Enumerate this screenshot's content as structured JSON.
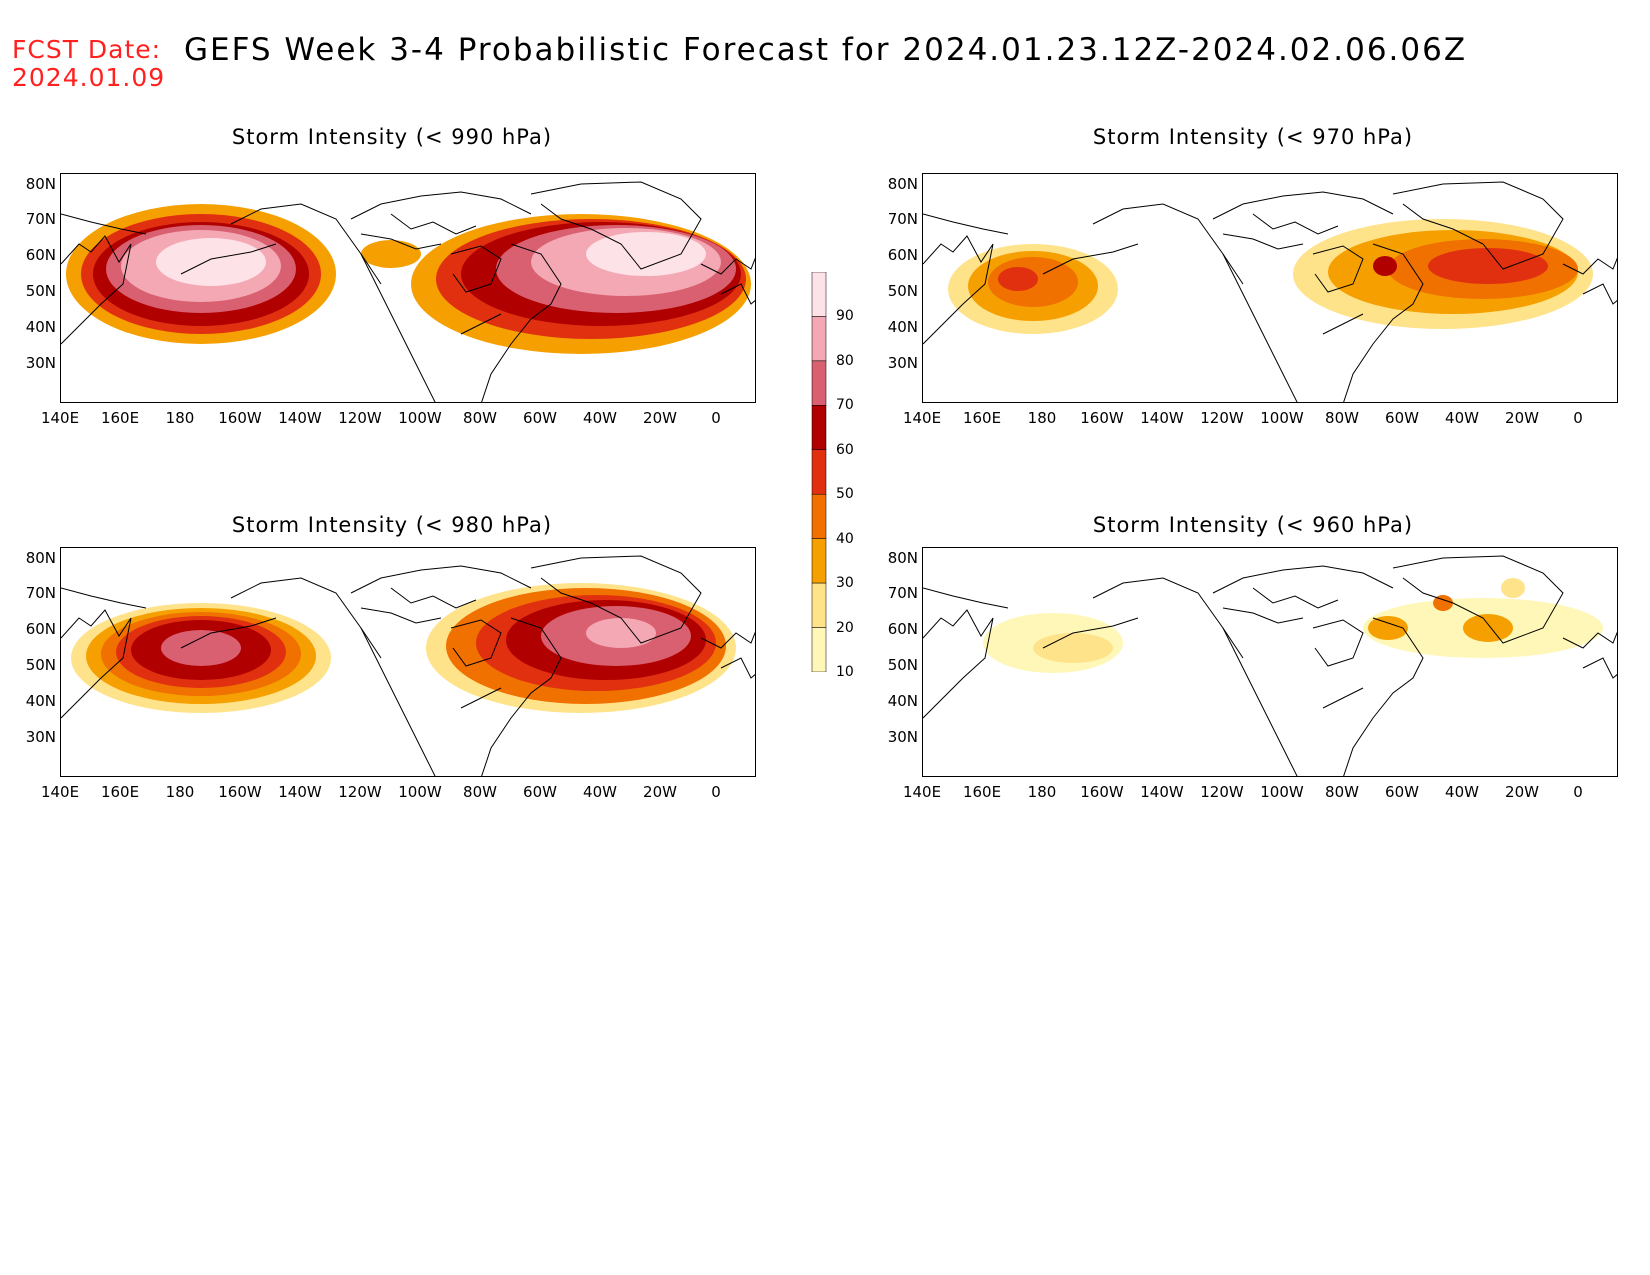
{
  "header": {
    "fcst_label": "FCST Date:",
    "fcst_date": "2024.01.09",
    "title": "GEFS Week 3-4 Probabilistic Forecast for 2024.01.23.12Z-2024.02.06.06Z"
  },
  "panels": [
    {
      "title": "Storm Intensity (< 990 hPa)"
    },
    {
      "title": "Storm Intensity (< 970 hPa)"
    },
    {
      "title": "Storm Intensity (< 980 hPa)"
    },
    {
      "title": "Storm Intensity (< 960 hPa)"
    }
  ],
  "axes": {
    "lat_labels": [
      "80N",
      "70N",
      "60N",
      "50N",
      "40N",
      "30N"
    ],
    "lon_labels": [
      "140E",
      "160E",
      "180",
      "160W",
      "140W",
      "120W",
      "100W",
      "80W",
      "60W",
      "40W",
      "20W",
      "0"
    ]
  },
  "colorbar": {
    "levels": [
      "10",
      "20",
      "30",
      "40",
      "50",
      "60",
      "70",
      "80",
      "90"
    ],
    "colors": [
      "#fff7b8",
      "#ffe38a",
      "#f5a000",
      "#f07000",
      "#e03010",
      "#b00000",
      "#d86070",
      "#f4a8b4",
      "#fde2e8"
    ]
  }
}
